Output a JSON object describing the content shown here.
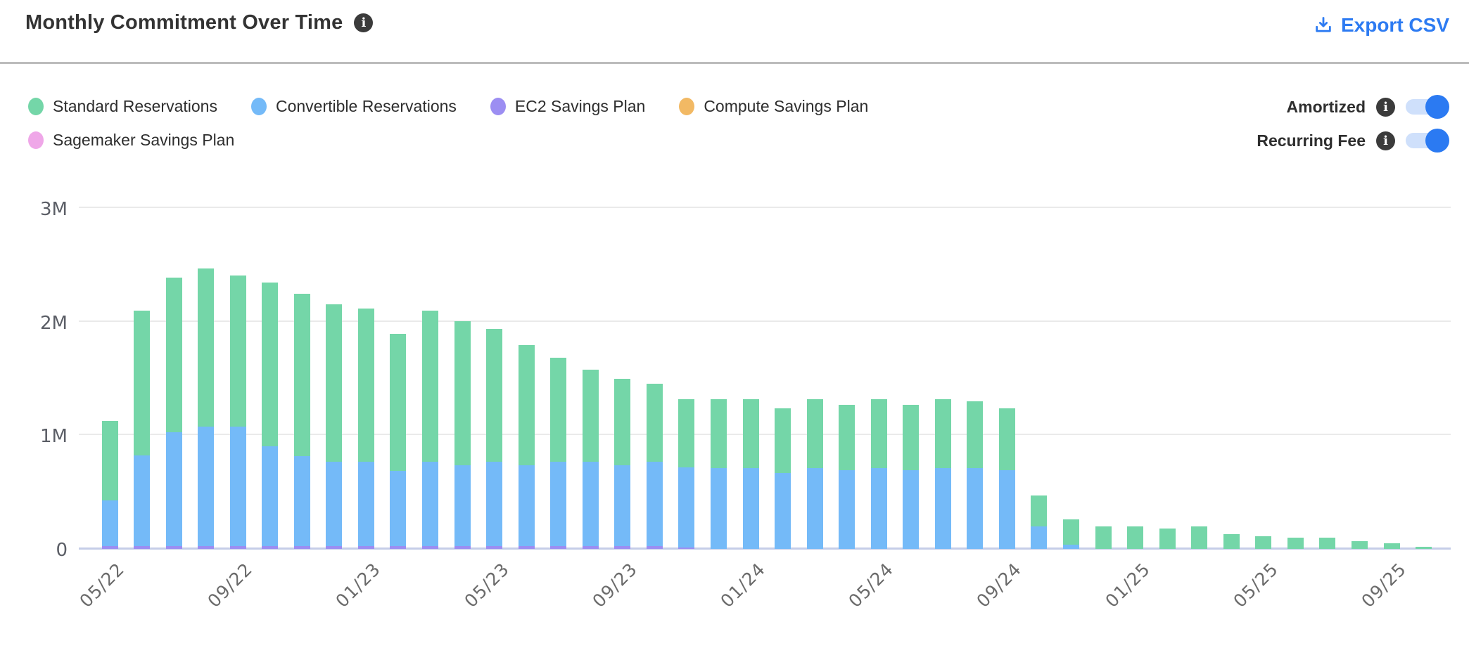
{
  "header": {
    "title": "Monthly Commitment Over Time",
    "title_info_icon": "info-icon",
    "export_label": "Export CSV",
    "accent_color": "#2d7bf2"
  },
  "legend": {
    "items": [
      {
        "label": "Standard Reservations",
        "color": "#74d6a8"
      },
      {
        "label": "Convertible Reservations",
        "color": "#74baf8"
      },
      {
        "label": "EC2 Savings Plan",
        "color": "#9c8ef2"
      },
      {
        "label": "Compute Savings Plan",
        "color": "#f2b964"
      },
      {
        "label": "Sagemaker Savings Plan",
        "color": "#efa7e8"
      }
    ]
  },
  "toggles": [
    {
      "label": "Amortized",
      "state": "on"
    },
    {
      "label": "Recurring Fee",
      "state": "on"
    }
  ],
  "chart_data": {
    "type": "bar",
    "stacked": true,
    "title": "Monthly Commitment Over Time",
    "xlabel": "",
    "ylabel": "",
    "y_unit": "M",
    "ylim": [
      0,
      3
    ],
    "grid": true,
    "legend_position": "top-left",
    "yticks": [
      {
        "label": "3M",
        "value": 3
      },
      {
        "label": "2M",
        "value": 2
      },
      {
        "label": "1M",
        "value": 1
      },
      {
        "label": "0",
        "value": 0
      }
    ],
    "categories": [
      "05/22",
      "06/22",
      "07/22",
      "08/22",
      "09/22",
      "10/22",
      "11/22",
      "12/22",
      "01/23",
      "02/23",
      "03/23",
      "04/23",
      "05/23",
      "06/23",
      "07/23",
      "08/23",
      "09/23",
      "10/23",
      "11/23",
      "12/23",
      "01/24",
      "02/24",
      "03/24",
      "04/24",
      "05/24",
      "06/24",
      "07/24",
      "08/24",
      "09/24",
      "10/24",
      "11/24",
      "12/24",
      "01/25",
      "02/25",
      "03/25",
      "04/25",
      "05/25",
      "06/25",
      "07/25",
      "08/25",
      "09/25",
      "10/25"
    ],
    "x_ticks": [
      {
        "index": 0,
        "label": "05/22"
      },
      {
        "index": 4,
        "label": "09/22"
      },
      {
        "index": 8,
        "label": "01/23"
      },
      {
        "index": 12,
        "label": "05/23"
      },
      {
        "index": 16,
        "label": "09/23"
      },
      {
        "index": 20,
        "label": "01/24"
      },
      {
        "index": 24,
        "label": "05/24"
      },
      {
        "index": 28,
        "label": "09/24"
      },
      {
        "index": 32,
        "label": "01/25"
      },
      {
        "index": 36,
        "label": "05/25"
      },
      {
        "index": 40,
        "label": "09/25"
      }
    ],
    "series": [
      {
        "name": "Standard Reservations",
        "key": "standard-reservations",
        "color": "#74d6a8",
        "values": [
          0.7,
          1.27,
          1.36,
          1.39,
          1.33,
          1.44,
          1.43,
          1.39,
          1.35,
          1.21,
          1.33,
          1.27,
          1.17,
          1.06,
          0.92,
          0.81,
          0.76,
          0.69,
          0.6,
          0.61,
          0.61,
          0.57,
          0.61,
          0.58,
          0.61,
          0.58,
          0.61,
          0.59,
          0.55,
          0.27,
          0.22,
          0.2,
          0.2,
          0.18,
          0.2,
          0.13,
          0.11,
          0.1,
          0.1,
          0.07,
          0.05,
          0.02
        ]
      },
      {
        "name": "Convertible Reservations",
        "key": "convertible-reservations",
        "color": "#74baf8",
        "values": [
          0.4,
          0.8,
          1.0,
          1.05,
          1.05,
          0.88,
          0.79,
          0.74,
          0.74,
          0.66,
          0.74,
          0.71,
          0.74,
          0.71,
          0.74,
          0.74,
          0.71,
          0.74,
          0.7,
          0.71,
          0.71,
          0.67,
          0.71,
          0.69,
          0.71,
          0.69,
          0.71,
          0.71,
          0.69,
          0.2,
          0.04,
          0,
          0,
          0,
          0,
          0,
          0,
          0,
          0,
          0,
          0,
          0
        ]
      },
      {
        "name": "EC2 Savings Plan",
        "key": "ec2-savings-plan",
        "color": "#9c8ef2",
        "values": [
          0.025,
          0.025,
          0.025,
          0.025,
          0.025,
          0.025,
          0.025,
          0.025,
          0.025,
          0.025,
          0.025,
          0.025,
          0.025,
          0.025,
          0.025,
          0.025,
          0.025,
          0.025,
          0.015,
          0,
          0,
          0,
          0,
          0,
          0,
          0,
          0,
          0,
          0,
          0,
          0,
          0,
          0,
          0,
          0,
          0,
          0,
          0,
          0,
          0,
          0,
          0
        ]
      },
      {
        "name": "Compute Savings Plan",
        "key": "compute-savings-plan",
        "color": "#f2b964",
        "values": [
          0,
          0,
          0,
          0,
          0,
          0,
          0,
          0,
          0,
          0,
          0,
          0,
          0,
          0,
          0,
          0,
          0,
          0,
          0,
          0,
          0,
          0,
          0,
          0,
          0,
          0,
          0,
          0,
          0,
          0,
          0,
          0,
          0,
          0,
          0,
          0,
          0,
          0,
          0,
          0,
          0,
          0
        ]
      },
      {
        "name": "Sagemaker Savings Plan",
        "key": "sagemaker-savings-plan",
        "color": "#efa7e8",
        "values": [
          0,
          0,
          0,
          0,
          0,
          0,
          0,
          0,
          0,
          0,
          0,
          0,
          0,
          0,
          0,
          0,
          0,
          0,
          0,
          0,
          0,
          0,
          0,
          0,
          0,
          0,
          0,
          0,
          0,
          0,
          0,
          0,
          0,
          0,
          0,
          0,
          0,
          0,
          0,
          0,
          0,
          0
        ]
      }
    ]
  }
}
